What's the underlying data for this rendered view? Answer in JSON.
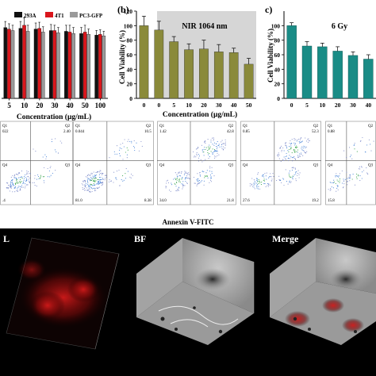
{
  "panels": {
    "a": {
      "legend": [
        "293A",
        "4T1",
        "PC3-GFP"
      ],
      "legend_colors": [
        "#111111",
        "#d9161c",
        "#9a9a9a"
      ],
      "xlabel": "Concentration (μg/mL)"
    },
    "b": {
      "letter": "(b)",
      "annotation": "NIR 1064 nm",
      "ylabel": "Cell Viability (%)",
      "xlabel": "Concentration (μg/mL)",
      "bar_color": "#8a8a3a"
    },
    "c": {
      "letter": "c)",
      "annotation": "6 Gy",
      "ylabel": "Cell Viability (%)",
      "bar_color": "#1a8c86"
    }
  },
  "chart_data": [
    {
      "type": "bar",
      "categories": [
        "5",
        "10",
        "20",
        "30",
        "40",
        "50",
        "100"
      ],
      "series": [
        {
          "name": "293A",
          "values": [
            94,
            93,
            92,
            90,
            89,
            86,
            84
          ]
        },
        {
          "name": "4T1",
          "values": [
            92,
            97,
            93,
            90,
            88,
            88,
            85
          ]
        },
        {
          "name": "PC3-GFP",
          "values": [
            90,
            89,
            88,
            87,
            86,
            85,
            83
          ]
        }
      ],
      "errors": [
        [
          8,
          9,
          8,
          8,
          8,
          8,
          6
        ],
        [
          7,
          10,
          8,
          7,
          9,
          9,
          6
        ],
        [
          7,
          8,
          7,
          7,
          8,
          7,
          6
        ]
      ],
      "xlabel": "Concentration (μg/mL)",
      "ylim": [
        0,
        120
      ]
    },
    {
      "type": "bar",
      "categories": [
        "0",
        "0",
        "5",
        "10",
        "20",
        "30",
        "40",
        "50"
      ],
      "values": [
        100,
        94,
        78,
        67,
        68,
        64,
        63,
        47
      ],
      "errors": [
        13,
        12,
        7,
        8,
        12,
        10,
        6,
        8
      ],
      "xlabel": "Concentration (μg/mL)",
      "ylabel": "Cell Viability (%)",
      "yticks": [
        0,
        20,
        40,
        60,
        80,
        100,
        120
      ],
      "ylim": [
        0,
        120
      ],
      "annotation": "NIR 1064 nm"
    },
    {
      "type": "bar",
      "categories": [
        "0",
        "5",
        "10",
        "20",
        "30",
        "40"
      ],
      "values": [
        100,
        72,
        71,
        65,
        59,
        54
      ],
      "errors": [
        4,
        6,
        5,
        6,
        5,
        6
      ],
      "ylabel": "Cell Viability (%)",
      "yticks": [
        0,
        20,
        40,
        60,
        80,
        100
      ],
      "ylim": [
        0,
        120
      ],
      "annotation": "6 Gy"
    },
    {
      "type": "scatter",
      "title_below": "Annexin V-FITC",
      "plots": [
        {
          "q1": "",
          "q2": "2.40",
          "q3": "",
          "q4": "",
          "q1_label": "022",
          "q3_label": "",
          "q4_label": ".4"
        },
        {
          "q1": "0.044",
          "q2": "10.5",
          "q3": "8.38",
          "q4": "81.0"
        },
        {
          "q1": "1.42",
          "q2": "42.8",
          "q3": "21.8",
          "q4": "34.0"
        },
        {
          "q1": "0.85",
          "q2": "52.3",
          "q3": "19.2",
          "q4": "27.6"
        },
        {
          "q1": "0.88",
          "q2": "",
          "q3": "",
          "q4": "15.8"
        }
      ]
    }
  ],
  "flow": {
    "q_labels": [
      "Q1",
      "Q2",
      "Q3",
      "Q4"
    ],
    "section_label": "Annexin V-FITC"
  },
  "micro": {
    "labels": [
      "L",
      "BF",
      "Merge"
    ]
  }
}
